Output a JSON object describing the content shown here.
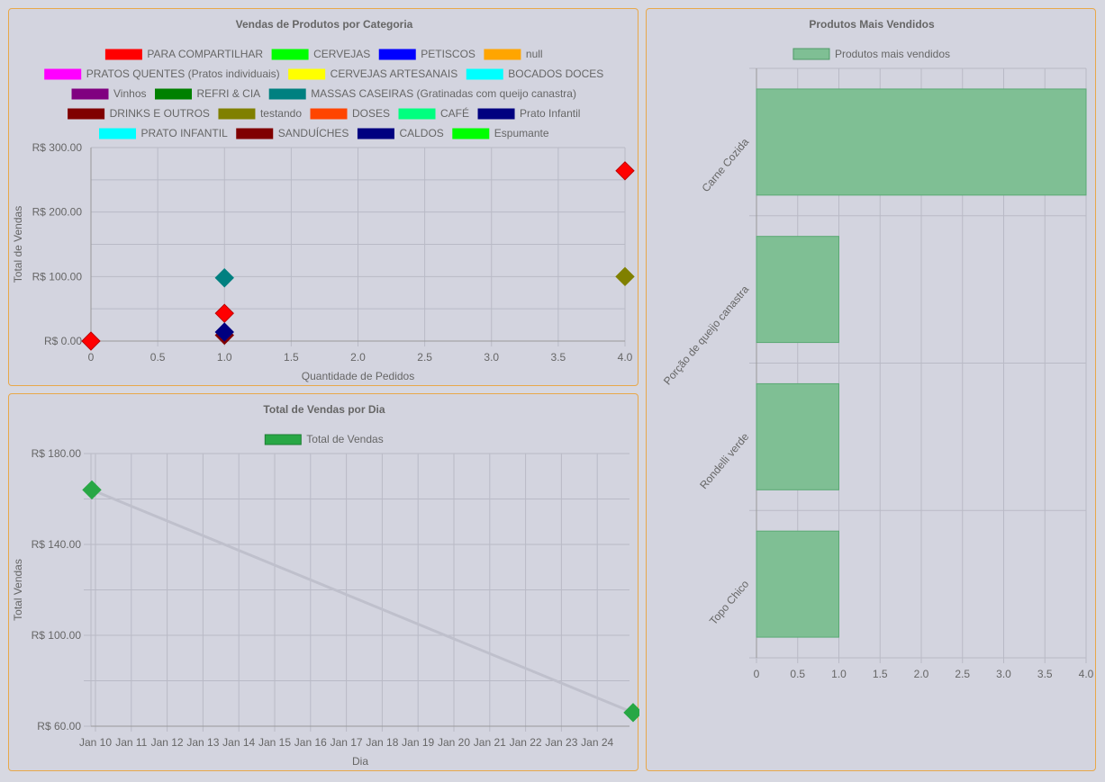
{
  "colors": {
    "panel_border": "#e8a84a",
    "grid": "#b9bac6",
    "text": "#666666"
  },
  "chart_data": [
    {
      "type": "scatter",
      "title": "Vendas de Produtos por Categoria",
      "xlabel": "Quantidade de Pedidos",
      "ylabel": "Total de Vendas",
      "xlim": [
        0,
        4
      ],
      "ylim": [
        0,
        300
      ],
      "x_ticks": [
        "0",
        "0.5",
        "1.0",
        "1.5",
        "2.0",
        "2.5",
        "3.0",
        "3.5",
        "4.0"
      ],
      "y_ticks": [
        "R$ 0.00",
        "R$ 100.00",
        "R$ 200.00",
        "R$ 300.00"
      ],
      "legend_position": "top",
      "series": [
        {
          "name": "PARA COMPARTILHAR",
          "color": "#ff0000",
          "points": [
            [
              4,
              264
            ],
            [
              1,
              43
            ],
            [
              0,
              0
            ]
          ]
        },
        {
          "name": "CERVEJAS",
          "color": "#00ff00",
          "points": []
        },
        {
          "name": "PETISCOS",
          "color": "#0000ff",
          "points": []
        },
        {
          "name": "null",
          "color": "#ffa500",
          "points": []
        },
        {
          "name": "PRATOS QUENTES (Pratos individuais)",
          "color": "#ff00ff",
          "points": []
        },
        {
          "name": "CERVEJAS ARTESANAIS",
          "color": "#ffff00",
          "points": []
        },
        {
          "name": "BOCADOS DOCES",
          "color": "#00ffff",
          "points": []
        },
        {
          "name": "Vinhos",
          "color": "#800080",
          "points": []
        },
        {
          "name": "REFRI & CIA",
          "color": "#008000",
          "points": []
        },
        {
          "name": "MASSAS CASEIRAS (Gratinadas com queijo canastra)",
          "color": "#008080",
          "points": [
            [
              1,
              98
            ]
          ]
        },
        {
          "name": "DRINKS E OUTROS",
          "color": "#800000",
          "points": []
        },
        {
          "name": "testando",
          "color": "#808000",
          "points": [
            [
              4,
              100
            ]
          ]
        },
        {
          "name": "DOSES",
          "color": "#ff4500",
          "points": []
        },
        {
          "name": "CAFÉ",
          "color": "#00ff7f",
          "points": []
        },
        {
          "name": "Prato Infantil",
          "color": "#000080",
          "points": []
        },
        {
          "name": "PRATO INFANTIL",
          "color": "#00ffff",
          "points": []
        },
        {
          "name": "SANDUÍCHES",
          "color": "#800000",
          "points": [
            [
              1,
              9
            ]
          ]
        },
        {
          "name": "CALDOS",
          "color": "#000080",
          "points": [
            [
              1,
              14
            ]
          ]
        },
        {
          "name": "Espumante",
          "color": "#00ff00",
          "points": []
        }
      ]
    },
    {
      "type": "line",
      "title": "Total de Vendas por Dia",
      "xlabel": "Dia",
      "ylabel": "Total Vendas",
      "x_ticks": [
        "Jan 10",
        "Jan 11",
        "Jan 12",
        "Jan 13",
        "Jan 14",
        "Jan 15",
        "Jan 16",
        "Jan 17",
        "Jan 18",
        "Jan 19",
        "Jan 20",
        "Jan 21",
        "Jan 22",
        "Jan 23",
        "Jan 24"
      ],
      "y_ticks": [
        "R$ 60.00",
        "R$ 100.00",
        "R$ 140.00",
        "R$ 180.00"
      ],
      "ylim": [
        60,
        180
      ],
      "legend_position": "top",
      "series": [
        {
          "name": "Total de Vendas",
          "color": "#28a745",
          "points": [
            {
              "x": "Jan 10",
              "y": 164
            },
            {
              "x": "Jan 25",
              "y": 66
            }
          ]
        }
      ]
    },
    {
      "type": "bar",
      "orientation": "horizontal",
      "title": "Produtos Mais Vendidos",
      "categories": [
        "Carne Cozida",
        "Porção de queijo canastra",
        "Rondelli verde",
        "Topo Chico"
      ],
      "x_ticks": [
        "0",
        "0.5",
        "1.0",
        "1.5",
        "2.0",
        "2.5",
        "3.0",
        "3.5",
        "4.0"
      ],
      "xlim": [
        0,
        4
      ],
      "legend_position": "top",
      "series": [
        {
          "name": "Produtos mais vendidos",
          "color": "#7fbf94",
          "values": [
            4,
            1,
            1,
            1
          ]
        }
      ]
    }
  ]
}
